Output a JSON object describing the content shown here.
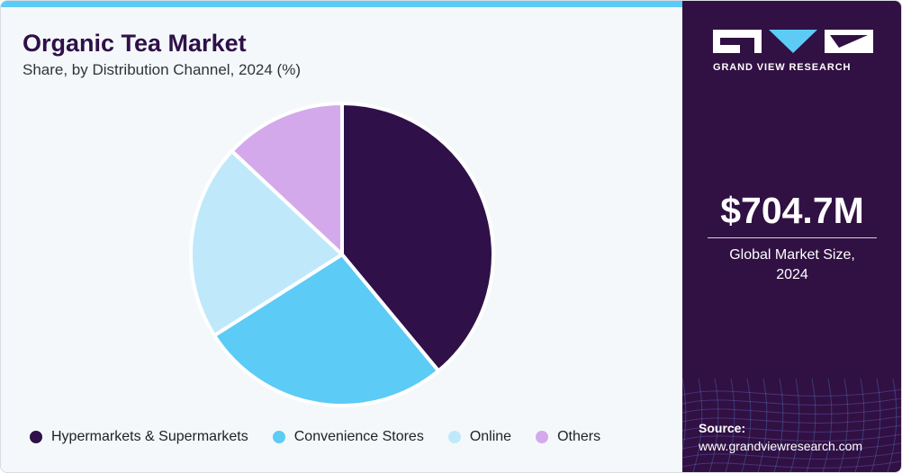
{
  "header": {
    "title": "Organic Tea Market",
    "subtitle": "Share, by Distribution Channel, 2024 (%)"
  },
  "chart_data": {
    "type": "pie",
    "title": "Organic Tea Market",
    "subtitle": "Share, by Distribution Channel, 2024 (%)",
    "categories": [
      "Hypermarkets & Supermarkets",
      "Convenience Stores",
      "Online",
      "Others"
    ],
    "values": [
      39,
      27,
      21,
      13
    ],
    "colors": [
      "#2f1049",
      "#5ccbf6",
      "#bfe9fb",
      "#d4a9ec"
    ],
    "legend": "bottom",
    "start_angle": "12 o'clock, clockwise"
  },
  "sidebar": {
    "logo_text": "GRAND VIEW RESEARCH",
    "market_value": "$704.7M",
    "market_caption_line1": "Global Market Size,",
    "market_caption_line2": "2024",
    "source_label": "Source:",
    "source_url": "www.grandviewresearch.com"
  },
  "colors": {
    "brand_purple": "#311043",
    "accent_blue": "#5ccbf6",
    "background": "#f4f8fb"
  }
}
